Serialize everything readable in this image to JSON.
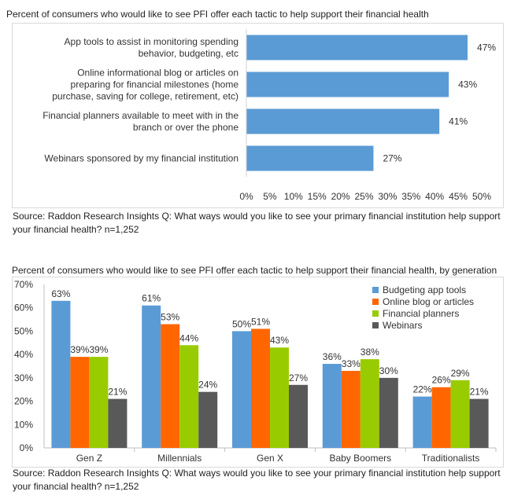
{
  "chart_data": [
    {
      "type": "bar",
      "orientation": "horizontal",
      "title": "Percent of consumers who would like to see PFI offer each tactic to help support their financial health",
      "categories": [
        [
          "App tools to assist in monitoring spending",
          "behavior, budgeting, etc"
        ],
        [
          "Online informational blog or articles on",
          "preparing for financial milestones (home",
          "purchase, saving for college, retirement, etc)"
        ],
        [
          "Financial planners available to meet with in the",
          "branch or over the phone"
        ],
        [
          "Webinars sponsored by my financial institution"
        ]
      ],
      "values": [
        47,
        43,
        41,
        27
      ],
      "value_labels": [
        "47%",
        "43%",
        "41%",
        "27%"
      ],
      "xlim": [
        0,
        50
      ],
      "x_ticks": [
        "0%",
        "5%",
        "10%",
        "15%",
        "20%",
        "25%",
        "30%",
        "35%",
        "40%",
        "45%",
        "50%"
      ],
      "grid": false,
      "color": "#5b9bd5",
      "source": "Source: Raddon Research Insights  Q: What ways would you like to see your primary financial institution help support your financial health?   n=1,252"
    },
    {
      "type": "bar",
      "orientation": "vertical",
      "title": "Percent of consumers who would like to see PFI offer each tactic to help support their financial health, by generation",
      "categories": [
        "Gen Z",
        "Millennials",
        "Gen X",
        "Baby Boomers",
        "Traditionalists"
      ],
      "series": [
        {
          "name": "Budgeting app tools",
          "color": "#5b9bd5",
          "values": [
            63,
            61,
            50,
            36,
            22
          ],
          "labels": [
            "63%",
            "61%",
            "50%",
            "36%",
            "22%"
          ]
        },
        {
          "name": "Online blog or articles",
          "color": "#ff6600",
          "values": [
            39,
            53,
            51,
            33,
            26
          ],
          "labels": [
            "39%",
            "53%",
            "51%",
            "33%",
            "26%"
          ]
        },
        {
          "name": "Financial planners",
          "color": "#99cc00",
          "values": [
            39,
            44,
            43,
            38,
            29
          ],
          "labels": [
            "39%",
            "44%",
            "43%",
            "38%",
            "29%"
          ]
        },
        {
          "name": "Webinars",
          "color": "#595959",
          "values": [
            21,
            24,
            27,
            30,
            21
          ],
          "labels": [
            "21%",
            "24%",
            "27%",
            "30%",
            "21%"
          ]
        }
      ],
      "ylim": [
        0,
        70
      ],
      "y_ticks": [
        "0%",
        "10%",
        "20%",
        "30%",
        "40%",
        "50%",
        "60%",
        "70%"
      ],
      "grid": false,
      "legend": "top-right",
      "source": "Source: Raddon Research Insights  Q: What ways would you like to see your primary financial institution help support your financial health?   n=1,252"
    }
  ]
}
